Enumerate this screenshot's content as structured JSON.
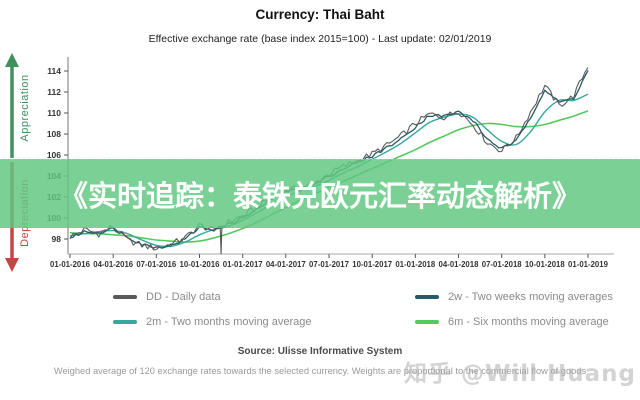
{
  "header": {
    "title": "Currency: Thai Baht",
    "subtitle": "Effective exchange rate (base index 2015=100) - Last update: 02/01/2019"
  },
  "side": {
    "appreciation_label": "Appreciation",
    "depreciation_label": "Depreciation",
    "appreciation_color": "#41915f",
    "depreciation_color": "#c64545"
  },
  "overlay": {
    "text": "《实时追踪：泰铢兑欧元汇率动态解析》",
    "band_color": "rgba(97,199,129,0.84)"
  },
  "chart_data": {
    "type": "line",
    "title": "Currency: Thai Baht",
    "x_interval": "monthly from 01-01-2016 to 01-01-2019",
    "x_tick_labels": [
      "01-01-2016",
      "04-01-2016",
      "07-01-2016",
      "10-01-2016",
      "01-01-2017",
      "04-01-2017",
      "07-01-2017",
      "10-01-2017",
      "01-01-2018",
      "04-01-2018",
      "07-01-2018",
      "10-01-2018",
      "01-01-2019"
    ],
    "yticks": [
      98,
      100,
      102,
      104,
      106,
      108,
      110,
      112,
      114
    ],
    "ylim": [
      96.57,
      115.33
    ],
    "grid": false,
    "legend_position": "bottom",
    "series": [
      {
        "id": "daily",
        "name": "DD - Daily data",
        "color": "#595959",
        "values": [
          98.2,
          98.9,
          98.5,
          99.2,
          97.9,
          97.4,
          97.1,
          97.5,
          98.1,
          99.3,
          98.8,
          99.6,
          100.2,
          101.0,
          102.0,
          102.6,
          102.9,
          103.3,
          104.2,
          104.9,
          105.5,
          106.1,
          106.9,
          107.8,
          109.0,
          109.9,
          109.6,
          110.2,
          108.9,
          107.2,
          106.4,
          107.6,
          110.1,
          112.6,
          110.7,
          111.6,
          114.5
        ]
      },
      {
        "id": "2w",
        "name": "2w - Two weeks moving averages",
        "color": "#265a66",
        "values": [
          98.1,
          98.7,
          98.6,
          99.0,
          98.2,
          97.5,
          97.2,
          97.4,
          98.0,
          99.1,
          98.9,
          99.4,
          100.0,
          100.8,
          101.8,
          102.5,
          102.8,
          103.2,
          104.0,
          104.7,
          105.3,
          105.9,
          106.7,
          107.5,
          108.7,
          109.8,
          109.7,
          110.1,
          109.3,
          107.5,
          106.6,
          107.3,
          109.6,
          112.2,
          111.0,
          111.4,
          114.0
        ]
      },
      {
        "id": "2m",
        "name": "2m - Two months moving average",
        "color": "#35a79c",
        "values": [
          98.3,
          98.5,
          98.7,
          98.8,
          98.5,
          97.9,
          97.4,
          97.3,
          97.7,
          98.4,
          98.9,
          99.2,
          99.8,
          100.5,
          101.3,
          102.0,
          102.6,
          103.0,
          103.6,
          104.3,
          104.9,
          105.6,
          106.3,
          107.1,
          108.1,
          109.1,
          109.6,
          109.9,
          109.6,
          108.4,
          107.3,
          107.0,
          108.2,
          110.1,
          111.2,
          111.2,
          111.8
        ]
      },
      {
        "id": "6m",
        "name": "6m - Six months moving average",
        "color": "#55c95f",
        "values": [
          98.6,
          98.5,
          98.5,
          98.4,
          98.3,
          98.1,
          97.9,
          97.8,
          97.7,
          97.8,
          98.1,
          98.5,
          99.0,
          99.6,
          100.3,
          101.0,
          101.7,
          102.3,
          102.9,
          103.5,
          104.1,
          104.7,
          105.3,
          105.9,
          106.5,
          107.2,
          107.8,
          108.4,
          108.8,
          109.0,
          108.9,
          108.7,
          108.7,
          108.9,
          109.3,
          109.7,
          110.2
        ]
      }
    ],
    "anomaly": {
      "series": "daily",
      "month_index": 10.5,
      "value": 96.6
    }
  },
  "legend": {
    "items": [
      {
        "label": "DD - Daily data",
        "color": "#595959"
      },
      {
        "label": "2w - Two weeks moving averages",
        "color": "#265a66"
      },
      {
        "label": "2m - Two months moving average",
        "color": "#35a79c"
      },
      {
        "label": "6m - Six months moving average",
        "color": "#55c95f"
      }
    ]
  },
  "footer": {
    "source": "Source: Ulisse Informative System",
    "caption": "Weighed average of 120 exchange rates towards the selected currency. Weights are proportional to the commercial flow of goods",
    "watermark": "知乎 @Will Huang"
  }
}
